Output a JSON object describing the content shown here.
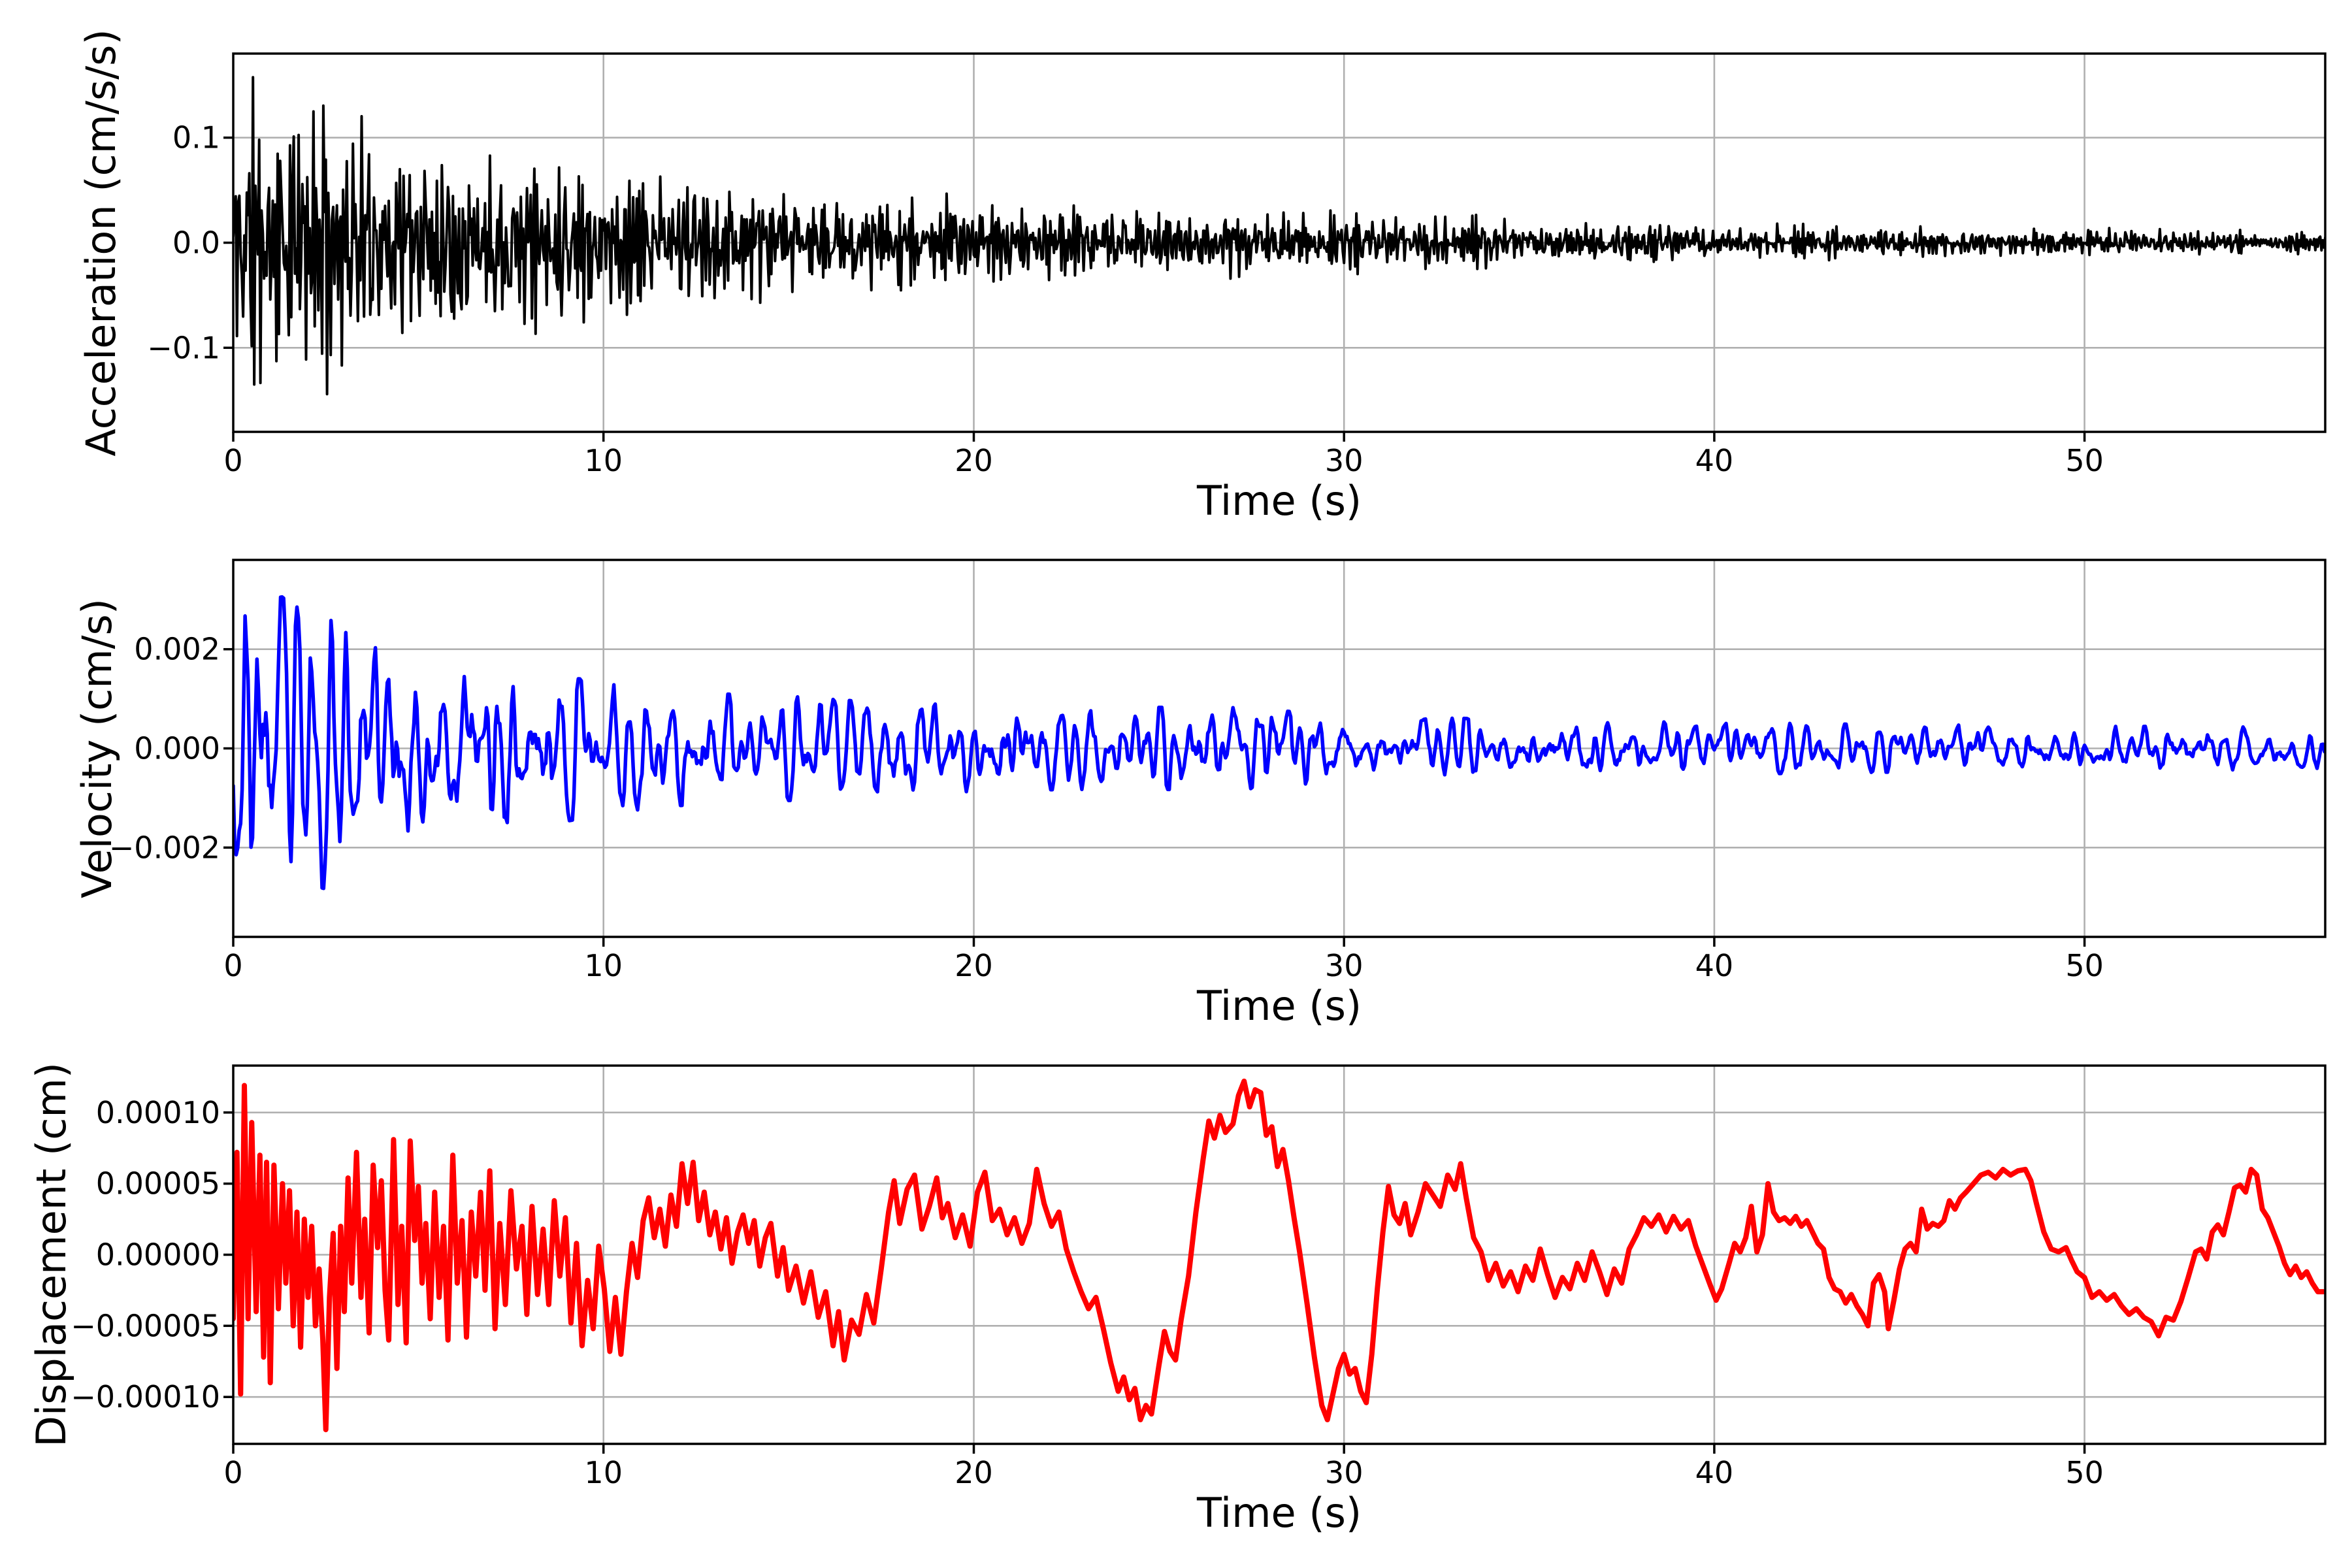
{
  "figure": {
    "background": "#ffffff",
    "grid_color": "#b0b0b0",
    "spine_color": "#000000",
    "n_panels": 3,
    "xlabel": "Time (s)"
  },
  "chart_data": [
    {
      "type": "line",
      "title": "",
      "xlabel": "Time (s)",
      "ylabel": "Acceleration (cm/s/s)",
      "xlim": [
        0,
        56.5
      ],
      "ylim": [
        -0.18,
        0.18
      ],
      "xticks": [
        0,
        10,
        20,
        30,
        40,
        50
      ],
      "yticks": [
        {
          "v": 0.1,
          "label": "0.1"
        },
        {
          "v": 0.0,
          "label": "0.0"
        },
        {
          "v": -0.1,
          "label": "−0.1"
        }
      ],
      "grid": true,
      "legend": null,
      "series": [
        {
          "name": "acceleration",
          "color": "#000000",
          "line_width": 4,
          "representation": "noise-envelope",
          "note": "dense broadband decaying seismic noise; individual samples not resolvable in pixels, envelope read from plot",
          "envelope_t": [
            0,
            0.5,
            1,
            2,
            3,
            4,
            5,
            6,
            7,
            8,
            9,
            10,
            12,
            14,
            16,
            18,
            20,
            23,
            26,
            30,
            34,
            38,
            42,
            46,
            50,
            53,
            56.5
          ],
          "envelope_amp": [
            0.17,
            0.165,
            0.155,
            0.145,
            0.133,
            0.122,
            0.116,
            0.107,
            0.1,
            0.093,
            0.087,
            0.082,
            0.072,
            0.062,
            0.054,
            0.048,
            0.043,
            0.038,
            0.034,
            0.029,
            0.025,
            0.022,
            0.019,
            0.016,
            0.014,
            0.012,
            0.011
          ],
          "synthesis": {
            "kind": "spiky",
            "fs": 30,
            "seed": 11,
            "hp": 0.5,
            "gain": 0.45,
            "clip_env": 1.04
          }
        }
      ]
    },
    {
      "type": "line",
      "title": "",
      "xlabel": "Time (s)",
      "ylabel": "Velocity (cm/s)",
      "xlim": [
        0,
        56.5
      ],
      "ylim": [
        -0.0038,
        0.0038
      ],
      "xticks": [
        0,
        10,
        20,
        30,
        40,
        50
      ],
      "yticks": [
        {
          "v": 0.002,
          "label": "0.002"
        },
        {
          "v": 0.0,
          "label": "0.000"
        },
        {
          "v": -0.002,
          "label": "−0.002"
        }
      ],
      "grid": true,
      "legend": null,
      "series": [
        {
          "name": "velocity",
          "color": "#0000ff",
          "line_width": 5.5,
          "representation": "noise-envelope",
          "note": "band-limited decaying oscillation ~2-3 Hz; envelope read from plot, peak ~0.0035 near t=0.15s",
          "envelope_t": [
            0,
            0.2,
            0.5,
            1,
            1.5,
            2,
            2.5,
            3,
            3.5,
            4,
            5,
            6,
            7,
            8,
            9,
            10,
            11,
            12,
            13,
            15,
            17,
            19,
            21,
            24,
            27,
            30,
            33,
            36,
            40,
            44,
            48,
            52,
            56.5
          ],
          "envelope_amp": [
            0.0028,
            0.0036,
            0.003,
            0.0031,
            0.0028,
            0.0026,
            0.0027,
            0.0023,
            0.002,
            0.0019,
            0.0018,
            0.0017,
            0.0016,
            0.0018,
            0.0014,
            0.00125,
            0.0012,
            0.0011,
            0.00105,
            0.001,
            0.0009,
            0.00085,
            0.0008,
            0.00078,
            0.0008,
            0.00062,
            0.00058,
            0.00052,
            0.0005,
            0.00046,
            0.00044,
            0.00042,
            0.0004
          ],
          "synthesis": {
            "kind": "resonant",
            "fs": 25,
            "seed": 23,
            "a1": 1.45,
            "a2": -0.76,
            "gain": 0.33,
            "clip_env": 1.05
          }
        }
      ]
    },
    {
      "type": "line",
      "title": "",
      "xlabel": "Time (s)",
      "ylabel": "Displacement (cm)",
      "xlim": [
        0,
        56.5
      ],
      "ylim": [
        -0.000133,
        0.000133
      ],
      "xticks": [
        0,
        10,
        20,
        30,
        40,
        50
      ],
      "yticks": [
        {
          "v": 0.0001,
          "label": "0.00010"
        },
        {
          "v": 5e-05,
          "label": "0.00005"
        },
        {
          "v": 0.0,
          "label": "0.00000"
        },
        {
          "v": -5e-05,
          "label": "−0.00005"
        },
        {
          "v": -0.0001,
          "label": "−0.00010"
        }
      ],
      "grid": true,
      "legend": null,
      "series": [
        {
          "name": "displacement",
          "color": "#ff0000",
          "line_width": 8,
          "representation": "keypoints",
          "value_scale": 1e-05,
          "points_flat": [
            0,
            -4.5,
            0.1,
            7.2,
            0.2,
            -9.8,
            0.3,
            11.9,
            0.4,
            -4.5,
            0.5,
            9.3,
            0.62,
            -4,
            0.72,
            7,
            0.82,
            -7.2,
            0.9,
            6.5,
            1.0,
            -9,
            1.1,
            6.3,
            1.22,
            -3.8,
            1.33,
            5,
            1.42,
            -2,
            1.52,
            4.5,
            1.62,
            -5,
            1.72,
            3,
            1.82,
            -6.5,
            1.92,
            2.5,
            2.02,
            -3,
            2.12,
            2,
            2.22,
            -5,
            2.32,
            -1,
            2.42,
            -6,
            2.5,
            -12.3,
            2.6,
            -3,
            2.7,
            1.5,
            2.8,
            -8,
            2.9,
            2,
            3.0,
            -4,
            3.1,
            5.4,
            3.2,
            -2,
            3.33,
            7.2,
            3.45,
            -3,
            3.55,
            2.5,
            3.67,
            -5.5,
            3.78,
            6.3,
            3.9,
            0.5,
            4.0,
            5.2,
            4.1,
            -2.5,
            4.2,
            -6,
            4.33,
            8.1,
            4.45,
            -3.5,
            4.55,
            2,
            4.67,
            -6.2,
            4.78,
            8,
            4.9,
            1,
            5.0,
            4.8,
            5.1,
            -2,
            5.2,
            2.2,
            5.32,
            -4.5,
            5.44,
            4.4,
            5.56,
            -3,
            5.68,
            2,
            5.8,
            -6,
            5.93,
            7,
            6.05,
            -2,
            6.18,
            2.4,
            6.3,
            -5.8,
            6.43,
            3,
            6.55,
            -1.5,
            6.68,
            4.4,
            6.8,
            -2.5,
            6.93,
            5.9,
            7.07,
            -5.2,
            7.2,
            2.2,
            7.35,
            -3.5,
            7.5,
            4.5,
            7.65,
            -1,
            7.8,
            2,
            7.93,
            -4.2,
            8.07,
            3.4,
            8.22,
            -2.8,
            8.37,
            1.8,
            8.52,
            -3.5,
            8.67,
            3.8,
            8.82,
            -1.5,
            8.97,
            2.6,
            9.12,
            -4.8,
            9.27,
            0.8,
            9.42,
            -6.4,
            9.57,
            -1.8,
            9.72,
            -5.2,
            9.87,
            0.6,
            10.02,
            -2.4,
            10.17,
            -6.8,
            10.32,
            -3,
            10.47,
            -7,
            10.62,
            -2.6,
            10.77,
            0.8,
            10.92,
            -1.6,
            11.07,
            2.4,
            11.22,
            4,
            11.37,
            1.2,
            11.52,
            3.2,
            11.67,
            0.6,
            11.82,
            4.2,
            11.97,
            2,
            12.12,
            6.4,
            12.27,
            3.6,
            12.42,
            6.5,
            12.57,
            2.4,
            12.72,
            4.4,
            12.87,
            1.4,
            13.02,
            3,
            13.17,
            0.4,
            13.32,
            2.6,
            13.47,
            -0.6,
            13.62,
            1.6,
            13.77,
            2.8,
            13.92,
            0.8,
            14.07,
            2.4,
            14.22,
            -0.8,
            14.37,
            1.2,
            14.52,
            2.2,
            14.7,
            -1.5,
            14.85,
            0.5,
            15.0,
            -2.5,
            15.2,
            -0.8,
            15.4,
            -3.4,
            15.6,
            -1.2,
            15.8,
            -4.4,
            16.0,
            -2.6,
            16.2,
            -6.4,
            16.35,
            -4,
            16.5,
            -7.4,
            16.7,
            -4.6,
            16.9,
            -5.6,
            17.1,
            -2.8,
            17.3,
            -4.8,
            17.5,
            -1,
            17.7,
            3,
            17.85,
            5.2,
            18.0,
            2.2,
            18.2,
            4.6,
            18.4,
            5.6,
            18.6,
            1.8,
            18.8,
            3.4,
            19.0,
            5.4,
            19.15,
            2.6,
            19.3,
            3.6,
            19.5,
            1.2,
            19.7,
            2.8,
            19.9,
            0.6,
            20.1,
            4.4,
            20.3,
            5.8,
            20.5,
            2.4,
            20.7,
            3.2,
            20.9,
            1.4,
            21.1,
            2.6,
            21.3,
            0.8,
            21.5,
            2.2,
            21.7,
            6,
            21.9,
            3.6,
            22.1,
            2,
            22.3,
            3,
            22.5,
            0.4,
            22.7,
            -1.2,
            22.9,
            -2.6,
            23.1,
            -3.8,
            23.3,
            -3,
            23.5,
            -5.2,
            23.7,
            -7.6,
            23.9,
            -9.6,
            24.05,
            -8.6,
            24.2,
            -10.2,
            24.35,
            -9.4,
            24.5,
            -11.6,
            24.65,
            -10.6,
            24.8,
            -11.2,
            25.0,
            -7.8,
            25.15,
            -5.4,
            25.3,
            -6.8,
            25.45,
            -7.4,
            25.6,
            -4.6,
            25.8,
            -1.5,
            26.0,
            3,
            26.2,
            6.8,
            26.35,
            9.4,
            26.5,
            8.2,
            26.65,
            9.8,
            26.8,
            8.6,
            27.0,
            9.2,
            27.15,
            11.2,
            27.3,
            12.2,
            27.45,
            10.4,
            27.6,
            11.6,
            27.75,
            11.4,
            27.9,
            8.4,
            28.05,
            9,
            28.2,
            6.2,
            28.35,
            7.4,
            28.5,
            5.2,
            28.65,
            2.6,
            28.8,
            0.2,
            29.0,
            -3.4,
            29.2,
            -7.2,
            29.4,
            -10.6,
            29.55,
            -11.6,
            29.7,
            -9.8,
            29.85,
            -8,
            30.0,
            -7,
            30.15,
            -8.4,
            30.3,
            -8,
            30.45,
            -9.6,
            30.6,
            -10.4,
            30.75,
            -7,
            30.9,
            -2.4,
            31.05,
            1.6,
            31.2,
            4.8,
            31.35,
            2.8,
            31.5,
            2.2,
            31.65,
            3.6,
            31.8,
            1.4,
            32.0,
            3,
            32.2,
            5,
            32.4,
            4.2,
            32.6,
            3.4,
            32.8,
            5.6,
            33.0,
            4.6,
            33.15,
            6.4,
            33.3,
            4,
            33.5,
            1.2,
            33.7,
            0.2,
            33.9,
            -1.8,
            34.1,
            -0.6,
            34.3,
            -2.2,
            34.5,
            -1.2,
            34.7,
            -2.6,
            34.9,
            -0.8,
            35.1,
            -1.8,
            35.3,
            0.4,
            35.5,
            -1.4,
            35.7,
            -3,
            35.9,
            -1.6,
            36.1,
            -2.4,
            36.3,
            -0.6,
            36.5,
            -1.8,
            36.7,
            0.2,
            36.9,
            -1.2,
            37.1,
            -2.8,
            37.3,
            -1,
            37.5,
            -2,
            37.7,
            0.4,
            37.9,
            1.4,
            38.1,
            2.6,
            38.3,
            2,
            38.5,
            2.8,
            38.7,
            1.6,
            38.9,
            2.7,
            39.1,
            1.8,
            39.3,
            2.4,
            39.5,
            0.6,
            39.7,
            -0.8,
            39.9,
            -2.2,
            40.05,
            -3.2,
            40.2,
            -2.4,
            40.4,
            -0.6,
            40.55,
            0.8,
            40.7,
            0.2,
            40.85,
            1.2,
            41.0,
            3.4,
            41.15,
            0.2,
            41.3,
            1.4,
            41.45,
            5,
            41.6,
            3,
            41.75,
            2.4,
            41.9,
            2.6,
            42.05,
            2.2,
            42.2,
            2.7,
            42.35,
            2,
            42.5,
            2.4,
            42.65,
            1.6,
            42.8,
            0.8,
            42.95,
            0.4,
            43.1,
            -1.6,
            43.25,
            -2.4,
            43.4,
            -2.6,
            43.55,
            -3.4,
            43.7,
            -2.8,
            43.85,
            -3.6,
            44.0,
            -4.2,
            44.15,
            -5,
            44.3,
            -2,
            44.45,
            -1.4,
            44.6,
            -2.6,
            44.7,
            -5.2,
            44.85,
            -3.2,
            45.0,
            -1,
            45.15,
            0.4,
            45.3,
            0.8,
            45.45,
            0.2,
            45.6,
            3.2,
            45.75,
            1.8,
            45.9,
            2.2,
            46.05,
            2,
            46.2,
            2.4,
            46.35,
            3.8,
            46.5,
            3.2,
            46.65,
            4,
            46.8,
            4.4,
            47.0,
            5,
            47.2,
            5.6,
            47.4,
            5.8,
            47.6,
            5.4,
            47.8,
            6,
            48.0,
            5.6,
            48.2,
            5.9,
            48.4,
            6,
            48.55,
            5.2,
            48.7,
            3.6,
            48.9,
            1.6,
            49.1,
            0.4,
            49.3,
            0.2,
            49.5,
            0.5,
            49.65,
            -0.4,
            49.8,
            -1.2,
            50.0,
            -1.6,
            50.2,
            -3,
            50.4,
            -2.6,
            50.6,
            -3.2,
            50.8,
            -2.8,
            51.0,
            -3.6,
            51.2,
            -4.2,
            51.4,
            -3.8,
            51.6,
            -4.4,
            51.8,
            -4.7,
            52.0,
            -5.7,
            52.2,
            -4.4,
            52.4,
            -4.6,
            52.6,
            -3.3,
            52.8,
            -1.6,
            53.0,
            0.2,
            53.15,
            0.4,
            53.3,
            -0.3,
            53.45,
            1.6,
            53.6,
            2.1,
            53.75,
            1.4,
            53.9,
            3,
            54.05,
            4.7,
            54.2,
            4.9,
            54.35,
            4.4,
            54.5,
            6,
            54.65,
            5.6,
            54.8,
            3.2,
            54.95,
            2.6,
            55.1,
            1.6,
            55.25,
            0.6,
            55.4,
            -0.6,
            55.55,
            -1.4,
            55.7,
            -0.8,
            55.85,
            -1.6,
            56.0,
            -1.2,
            56.15,
            -2,
            56.3,
            -2.6,
            56.45,
            -2.6
          ]
        }
      ]
    }
  ]
}
